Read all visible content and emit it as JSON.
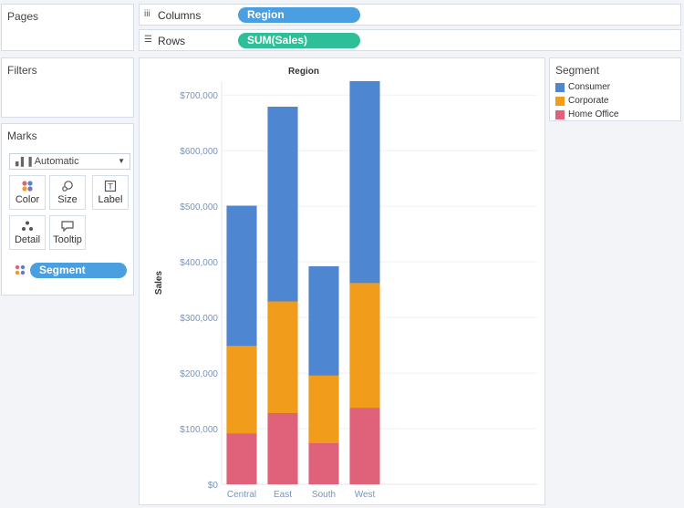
{
  "panels": {
    "pages": "Pages",
    "filters": "Filters",
    "marks": "Marks"
  },
  "marks": {
    "type": "Automatic",
    "buttons": [
      "Color",
      "Size",
      "Label",
      "Detail",
      "Tooltip"
    ],
    "color_field": "Segment"
  },
  "shelves": {
    "columns_label": "Columns",
    "columns_pill": "Region",
    "rows_label": "Rows",
    "rows_pill": "SUM(Sales)"
  },
  "legend": {
    "title": "Segment",
    "items": [
      {
        "label": "Consumer",
        "color": "#4e86d1"
      },
      {
        "label": "Corporate",
        "color": "#f29c1b"
      },
      {
        "label": "Home Office",
        "color": "#e0627a"
      }
    ]
  },
  "colors": {
    "columns_pill": "#4a9fe0",
    "rows_pill": "#2ebf99",
    "tick_text": "#7a94b8"
  },
  "chart_data": {
    "type": "bar",
    "stacked": true,
    "title": "Region",
    "xlabel": "",
    "ylabel": "Sales",
    "categories": [
      "Central",
      "East",
      "South",
      "West"
    ],
    "series": [
      {
        "name": "Home Office",
        "values": [
          91000,
          128000,
          74000,
          137000
        ]
      },
      {
        "name": "Corporate",
        "values": [
          158000,
          201000,
          122000,
          225000
        ]
      },
      {
        "name": "Consumer",
        "values": [
          252000,
          350000,
          196000,
          363000
        ]
      }
    ],
    "ylim": [
      0,
      725000
    ],
    "yticks": [
      0,
      100000,
      200000,
      300000,
      400000,
      500000,
      600000,
      700000
    ],
    "ytick_labels": [
      "$0",
      "$100,000",
      "$200,000",
      "$300,000",
      "$400,000",
      "$500,000",
      "$600,000",
      "$700,000"
    ],
    "grid": true
  }
}
